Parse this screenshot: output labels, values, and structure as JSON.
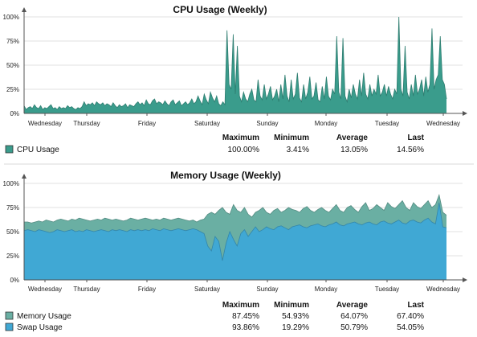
{
  "chart_data": [
    {
      "type": "area",
      "title": "CPU Usage (Weekly)",
      "x_ticks": [
        "Wednesday",
        "Thursday",
        "Friday",
        "Saturday",
        "Sunday",
        "Monday",
        "Tuesday",
        "Wednesday"
      ],
      "y_ticks": [
        "100%",
        "75%",
        "50%",
        "25%",
        "0%"
      ],
      "ylim": [
        0,
        100
      ],
      "grid": true,
      "legend_position": "bottom-left",
      "stats_headers": [
        "Maximum",
        "Minimum",
        "Average",
        "Last"
      ],
      "series": [
        {
          "name": "CPU Usage",
          "color": "#3a9c8c",
          "stats": [
            "100.00%",
            "3.41%",
            "13.05%",
            "14.56%"
          ],
          "values": [
            8,
            4,
            6,
            7,
            5,
            9,
            6,
            5,
            8,
            4,
            6,
            5,
            7,
            9,
            5,
            6,
            4,
            7,
            5,
            6,
            5,
            8,
            6,
            7,
            5,
            4,
            6,
            5,
            7,
            12,
            8,
            10,
            9,
            11,
            8,
            12,
            10,
            9,
            11,
            8,
            10,
            9,
            7,
            11,
            8,
            6,
            9,
            7,
            8,
            10,
            6,
            9,
            8,
            7,
            10,
            12,
            9,
            11,
            8,
            14,
            10,
            9,
            13,
            15,
            10,
            12,
            11,
            9,
            13,
            10,
            8,
            12,
            14,
            9,
            11,
            13,
            8,
            10,
            12,
            9,
            11,
            15,
            10,
            12,
            18,
            13,
            9,
            20,
            14,
            10,
            22,
            16,
            12,
            18,
            10,
            8,
            12,
            9,
            86,
            30,
            25,
            82,
            20,
            70,
            18,
            12,
            22,
            15,
            12,
            20,
            25,
            14,
            12,
            35,
            18,
            14,
            30,
            15,
            20,
            28,
            14,
            18,
            25,
            12,
            30,
            15,
            40,
            18,
            12,
            35,
            15,
            20,
            42,
            16,
            12,
            30,
            15,
            22,
            38,
            15,
            18,
            32,
            14,
            12,
            28,
            15,
            38,
            18,
            14,
            25,
            20,
            80,
            22,
            15,
            78,
            18,
            12,
            25,
            16,
            30,
            20,
            15,
            35,
            18,
            42,
            20,
            15,
            30,
            18,
            25,
            20,
            40,
            18,
            22,
            30,
            18,
            28,
            20,
            15,
            25,
            20,
            100,
            25,
            18,
            70,
            22,
            15,
            30,
            18,
            40,
            20,
            25,
            35,
            18,
            38,
            22,
            30,
            88,
            25,
            35,
            40,
            80,
            35,
            30,
            15
          ]
        }
      ]
    },
    {
      "type": "area",
      "title": "Memory Usage (Weekly)",
      "x_ticks": [
        "Wednesday",
        "Thursday",
        "Friday",
        "Saturday",
        "Sunday",
        "Monday",
        "Tuesday",
        "Wednesday"
      ],
      "y_ticks": [
        "100%",
        "75%",
        "50%",
        "25%",
        "0%"
      ],
      "ylim": [
        0,
        100
      ],
      "grid": true,
      "legend_position": "bottom-left",
      "stats_headers": [
        "Maximum",
        "Minimum",
        "Average",
        "Last"
      ],
      "series": [
        {
          "name": "Memory Usage",
          "color": "#6aafa3",
          "stats": [
            "87.45%",
            "54.93%",
            "64.07%",
            "67.40%"
          ],
          "values": [
            60,
            60,
            59,
            60,
            61,
            60,
            62,
            61,
            60,
            62,
            63,
            62,
            61,
            63,
            62,
            64,
            63,
            62,
            61,
            62,
            63,
            62,
            64,
            63,
            62,
            63,
            62,
            61,
            62,
            64,
            63,
            62,
            63,
            64,
            63,
            62,
            63,
            62,
            64,
            63,
            62,
            63,
            64,
            63,
            62,
            61,
            62,
            60,
            62,
            63,
            68,
            70,
            68,
            72,
            75,
            70,
            68,
            78,
            72,
            70,
            75,
            68,
            65,
            70,
            72,
            75,
            70,
            68,
            72,
            74,
            70,
            72,
            75,
            73,
            72,
            70,
            74,
            76,
            72,
            70,
            73,
            75,
            72,
            70,
            74,
            78,
            72,
            70,
            75,
            77,
            73,
            70,
            76,
            80,
            72,
            74,
            78,
            75,
            72,
            80,
            76,
            74,
            78,
            82,
            75,
            72,
            80,
            76,
            74,
            78,
            82,
            75,
            78,
            88,
            70,
            67
          ]
        },
        {
          "name": "Swap Usage",
          "color": "#40a8d4",
          "stats": [
            "93.86%",
            "19.29%",
            "50.79%",
            "54.05%"
          ],
          "values": [
            51,
            52,
            51,
            50,
            52,
            51,
            50,
            49,
            50,
            52,
            51,
            50,
            51,
            52,
            50,
            51,
            50,
            52,
            51,
            50,
            51,
            52,
            51,
            50,
            52,
            51,
            52,
            51,
            50,
            52,
            51,
            52,
            51,
            52,
            51,
            53,
            52,
            51,
            53,
            52,
            51,
            52,
            53,
            52,
            51,
            52,
            53,
            52,
            50,
            48,
            35,
            30,
            45,
            40,
            20,
            38,
            50,
            42,
            35,
            48,
            52,
            45,
            50,
            55,
            50,
            52,
            55,
            53,
            52,
            55,
            56,
            54,
            52,
            55,
            56,
            57,
            55,
            54,
            56,
            57,
            58,
            56,
            55,
            57,
            58,
            60,
            57,
            56,
            58,
            59,
            60,
            58,
            57,
            59,
            60,
            58,
            57,
            60,
            61,
            59,
            58,
            60,
            62,
            59,
            58,
            61,
            62,
            60,
            59,
            62,
            64,
            60,
            58,
            80,
            55,
            54
          ]
        }
      ]
    }
  ]
}
